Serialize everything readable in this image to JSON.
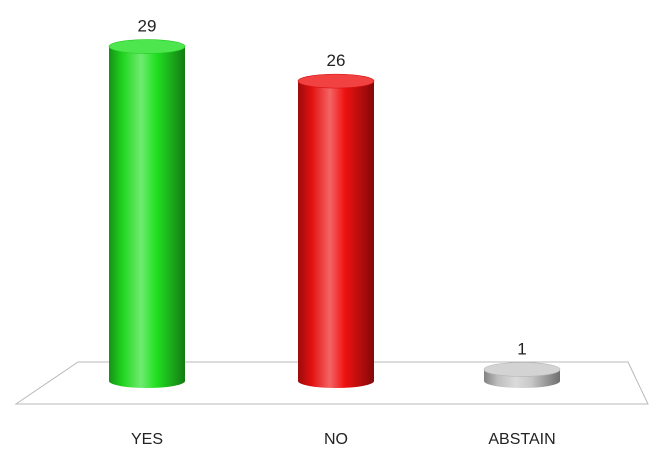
{
  "chart_data": {
    "type": "bar",
    "style": "3d-cylinder",
    "categories": [
      "YES",
      "NO",
      "ABSTAIN"
    ],
    "values": [
      29,
      26,
      1
    ],
    "data_labels": [
      "29",
      "26",
      "1"
    ],
    "colors": [
      "#22e022",
      "#ee1111",
      "#c8c8c8"
    ],
    "title": "",
    "xlabel": "",
    "ylabel": "",
    "ylim": [
      0,
      30
    ],
    "grid": false,
    "legend": "none"
  }
}
